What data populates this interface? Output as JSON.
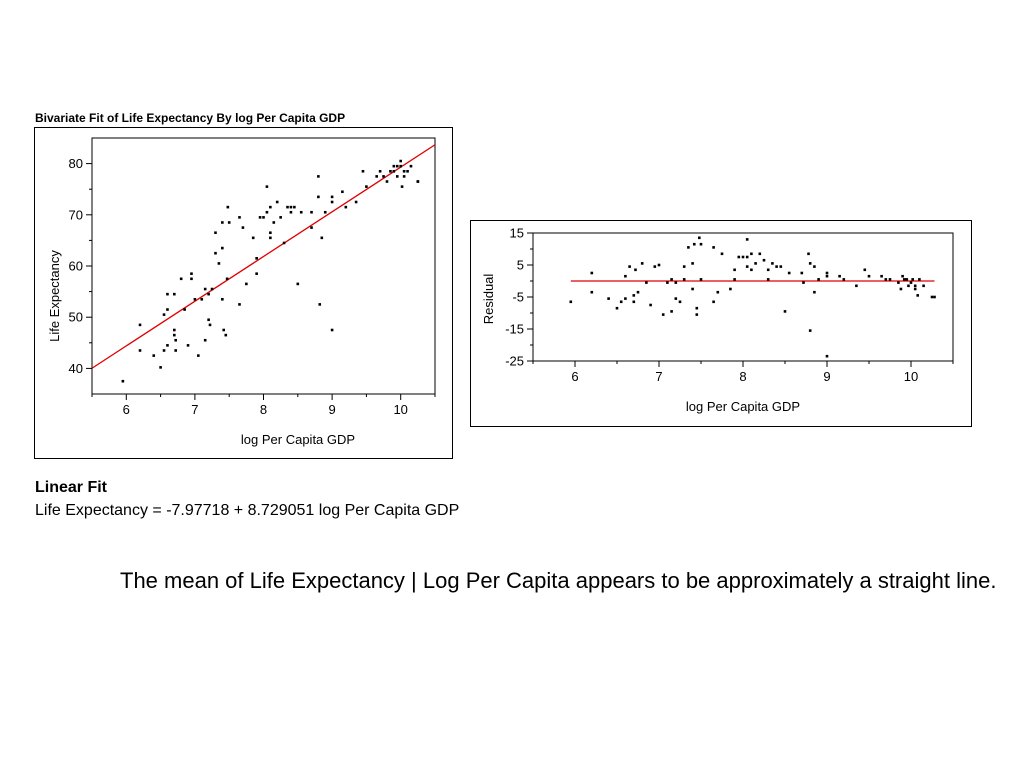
{
  "main_plot": {
    "title": "Bivariate Fit of Life Expectancy By log Per Capita GDP"
  },
  "linear_fit": {
    "heading": "Linear Fit",
    "equation": "Life Expectancy = -7.97718 + 8.729051 log Per Capita GDP"
  },
  "note": "The mean of Life Expectancy | Log Per Capita appears to be approximately a straight line.",
  "colors": {
    "fit_line": "#e00000",
    "points": "#000000"
  },
  "chart_data": [
    {
      "type": "scatter",
      "title": "Bivariate Fit of Life Expectancy By log Per Capita GDP",
      "xlabel": "log Per Capita GDP",
      "ylabel": "Life Expectancy",
      "xlim": [
        5.5,
        10.5
      ],
      "ylim": [
        35,
        85
      ],
      "xticks": [
        6,
        7,
        8,
        9,
        10
      ],
      "yticks": [
        40,
        50,
        60,
        70,
        80
      ],
      "grid": false,
      "fit_line": {
        "intercept": -7.97718,
        "slope": 8.729051
      },
      "points": [
        [
          5.95,
          37.5
        ],
        [
          6.2,
          48.5
        ],
        [
          6.2,
          43.5
        ],
        [
          6.4,
          42.5
        ],
        [
          6.5,
          40.2
        ],
        [
          6.55,
          43.5
        ],
        [
          6.55,
          50.5
        ],
        [
          6.6,
          44.5
        ],
        [
          6.6,
          51.5
        ],
        [
          6.6,
          54.5
        ],
        [
          6.7,
          54.5
        ],
        [
          6.7,
          47.5
        ],
        [
          6.7,
          46.5
        ],
        [
          6.72,
          45.5
        ],
        [
          6.72,
          43.5
        ],
        [
          6.8,
          57.5
        ],
        [
          6.85,
          51.5
        ],
        [
          6.9,
          44.5
        ],
        [
          6.95,
          57.5
        ],
        [
          6.95,
          58.5
        ],
        [
          7.0,
          53.5
        ],
        [
          7.05,
          42.5
        ],
        [
          7.1,
          53.5
        ],
        [
          7.15,
          55.5
        ],
        [
          7.15,
          45.5
        ],
        [
          7.2,
          54.5
        ],
        [
          7.2,
          49.5
        ],
        [
          7.22,
          48.5
        ],
        [
          7.25,
          55.5
        ],
        [
          7.3,
          62.5
        ],
        [
          7.3,
          66.5
        ],
        [
          7.35,
          60.5
        ],
        [
          7.4,
          63.5
        ],
        [
          7.4,
          68.5
        ],
        [
          7.4,
          53.5
        ],
        [
          7.42,
          47.5
        ],
        [
          7.45,
          46.5
        ],
        [
          7.47,
          57.5
        ],
        [
          7.48,
          71.5
        ],
        [
          7.5,
          68.5
        ],
        [
          7.65,
          52.5
        ],
        [
          7.65,
          69.5
        ],
        [
          7.7,
          67.5
        ],
        [
          7.75,
          56.5
        ],
        [
          7.85,
          65.5
        ],
        [
          7.9,
          61.5
        ],
        [
          7.9,
          58.5
        ],
        [
          7.95,
          69.5
        ],
        [
          8.0,
          69.5
        ],
        [
          8.05,
          70.5
        ],
        [
          8.05,
          75.5
        ],
        [
          8.1,
          71.5
        ],
        [
          8.1,
          66.5
        ],
        [
          8.1,
          65.5
        ],
        [
          8.15,
          68.5
        ],
        [
          8.2,
          72.5
        ],
        [
          8.25,
          69.5
        ],
        [
          8.3,
          64.5
        ],
        [
          8.35,
          71.5
        ],
        [
          8.4,
          70.5
        ],
        [
          8.4,
          71.5
        ],
        [
          8.45,
          71.5
        ],
        [
          8.5,
          56.5
        ],
        [
          8.55,
          70.5
        ],
        [
          8.7,
          70.5
        ],
        [
          8.7,
          67.5
        ],
        [
          8.8,
          73.5
        ],
        [
          8.8,
          77.5
        ],
        [
          8.82,
          52.5
        ],
        [
          8.85,
          65.5
        ],
        [
          8.9,
          70.5
        ],
        [
          9.0,
          72.5
        ],
        [
          9.0,
          73.5
        ],
        [
          9.0,
          47.5
        ],
        [
          9.15,
          74.5
        ],
        [
          9.2,
          71.5
        ],
        [
          9.35,
          72.5
        ],
        [
          9.45,
          78.5
        ],
        [
          9.5,
          75.5
        ],
        [
          9.65,
          77.5
        ],
        [
          9.7,
          78.5
        ],
        [
          9.75,
          77.5
        ],
        [
          9.8,
          76.5
        ],
        [
          9.85,
          78.5
        ],
        [
          9.9,
          78.5
        ],
        [
          9.9,
          79.5
        ],
        [
          9.95,
          77.5
        ],
        [
          9.95,
          79.5
        ],
        [
          10.0,
          80.5
        ],
        [
          10.0,
          79.5
        ],
        [
          10.02,
          75.5
        ],
        [
          10.05,
          77.5
        ],
        [
          10.05,
          78.5
        ],
        [
          10.1,
          78.5
        ],
        [
          10.15,
          79.5
        ],
        [
          10.25,
          76.5
        ],
        [
          10.25,
          76.5
        ]
      ]
    },
    {
      "type": "scatter",
      "ylabel": "Residual",
      "xlabel": "log Per Capita GDP",
      "xlim": [
        5.5,
        10.5
      ],
      "ylim": [
        -25,
        15
      ],
      "xticks": [
        6,
        7,
        8,
        9,
        10
      ],
      "yticks": [
        -25,
        -15,
        -5,
        5,
        15
      ],
      "grid": false,
      "zero_line": 0,
      "points": [
        [
          5.95,
          -6.5
        ],
        [
          6.2,
          -3.5
        ],
        [
          6.2,
          2.5
        ],
        [
          6.4,
          -5.5
        ],
        [
          6.5,
          -8.5
        ],
        [
          6.55,
          -6.5
        ],
        [
          6.6,
          1.5
        ],
        [
          6.6,
          -5.5
        ],
        [
          6.65,
          4.5
        ],
        [
          6.7,
          -6.5
        ],
        [
          6.7,
          -4.5
        ],
        [
          6.72,
          3.5
        ],
        [
          6.75,
          -3.5
        ],
        [
          6.8,
          5.5
        ],
        [
          6.85,
          -0.5
        ],
        [
          6.9,
          -7.5
        ],
        [
          6.95,
          4.5
        ],
        [
          7.0,
          5.0
        ],
        [
          7.05,
          -10.5
        ],
        [
          7.1,
          -0.5
        ],
        [
          7.15,
          0.5
        ],
        [
          7.15,
          -9.5
        ],
        [
          7.2,
          -0.5
        ],
        [
          7.2,
          -5.5
        ],
        [
          7.25,
          -6.5
        ],
        [
          7.3,
          0.5
        ],
        [
          7.3,
          4.5
        ],
        [
          7.35,
          10.5
        ],
        [
          7.4,
          5.5
        ],
        [
          7.4,
          -2.5
        ],
        [
          7.42,
          11.5
        ],
        [
          7.45,
          -8.5
        ],
        [
          7.45,
          -10.5
        ],
        [
          7.48,
          13.5
        ],
        [
          7.5,
          11.5
        ],
        [
          7.5,
          0.5
        ],
        [
          7.65,
          10.5
        ],
        [
          7.65,
          -6.5
        ],
        [
          7.7,
          -3.5
        ],
        [
          7.75,
          8.5
        ],
        [
          7.85,
          -2.5
        ],
        [
          7.9,
          3.5
        ],
        [
          7.9,
          0.5
        ],
        [
          7.95,
          7.5
        ],
        [
          8.0,
          7.5
        ],
        [
          8.05,
          4.5
        ],
        [
          8.05,
          7.5
        ],
        [
          8.05,
          13.0
        ],
        [
          8.1,
          3.5
        ],
        [
          8.1,
          8.5
        ],
        [
          8.15,
          5.5
        ],
        [
          8.2,
          8.5
        ],
        [
          8.25,
          6.5
        ],
        [
          8.3,
          3.5
        ],
        [
          8.3,
          0.5
        ],
        [
          8.35,
          5.5
        ],
        [
          8.4,
          4.5
        ],
        [
          8.45,
          4.5
        ],
        [
          8.5,
          -9.5
        ],
        [
          8.55,
          2.5
        ],
        [
          8.7,
          2.5
        ],
        [
          8.72,
          -0.5
        ],
        [
          8.78,
          8.5
        ],
        [
          8.8,
          -15.5
        ],
        [
          8.8,
          5.5
        ],
        [
          8.85,
          -3.5
        ],
        [
          8.85,
          4.5
        ],
        [
          8.9,
          0.5
        ],
        [
          9.0,
          2.5
        ],
        [
          9.0,
          1.5
        ],
        [
          9.0,
          -23.5
        ],
        [
          9.15,
          1.5
        ],
        [
          9.2,
          0.5
        ],
        [
          9.35,
          -1.5
        ],
        [
          9.45,
          3.5
        ],
        [
          9.5,
          1.5
        ],
        [
          9.65,
          1.5
        ],
        [
          9.7,
          0.5
        ],
        [
          9.75,
          0.5
        ],
        [
          9.85,
          -0.5
        ],
        [
          9.88,
          -2.5
        ],
        [
          9.9,
          1.5
        ],
        [
          9.92,
          0.5
        ],
        [
          9.95,
          0.5
        ],
        [
          9.97,
          -1.5
        ],
        [
          10.0,
          -0.5
        ],
        [
          10.02,
          0.5
        ],
        [
          10.05,
          -1.5
        ],
        [
          10.05,
          -2.5
        ],
        [
          10.08,
          -4.5
        ],
        [
          10.1,
          0.5
        ],
        [
          10.15,
          -1.5
        ],
        [
          10.25,
          -5.0
        ],
        [
          10.28,
          -5.0
        ]
      ]
    }
  ]
}
